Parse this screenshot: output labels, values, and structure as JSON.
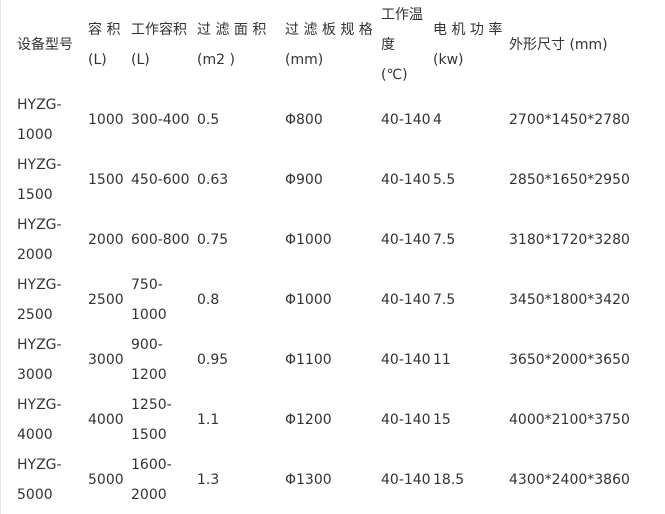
{
  "table": {
    "headers": [
      {
        "line1": "设备型号",
        "line2": ""
      },
      {
        "line1": "容  积",
        "line2": "(L)"
      },
      {
        "line1": "工作容积",
        "line2": "(L)"
      },
      {
        "line1": "过 滤 面 积",
        "line2": "(m2 )"
      },
      {
        "line1": "过 滤 板 规 格",
        "line2": "(mm)"
      },
      {
        "line1": "工作温度",
        "line2": "(℃)"
      },
      {
        "line1": "电 机 功 率",
        "line2": "(kw)"
      },
      {
        "line1": "外形尺寸 (mm)",
        "line2": ""
      }
    ],
    "rows": [
      [
        "HYZG-1000",
        "1000",
        "300-400",
        "0.5",
        "Φ800",
        "40-140",
        "4",
        "2700*1450*2780"
      ],
      [
        "HYZG-1500",
        "1500",
        "450-600",
        "0.63",
        "Φ900",
        "40-140",
        "5.5",
        "2850*1650*2950"
      ],
      [
        "HYZG-2000",
        "2000",
        "600-800",
        "0.75",
        "Φ1000",
        "40-140",
        "7.5",
        "3180*1720*3280"
      ],
      [
        "HYZG-2500",
        "2500",
        "750-1000",
        "0.8",
        "Φ1000",
        "40-140",
        "7.5",
        "3450*1800*3420"
      ],
      [
        "HYZG-3000",
        "3000",
        "900-1200",
        "0.95",
        "Φ1100",
        "40-140",
        "11",
        "3650*2000*3650"
      ],
      [
        "HYZG-4000",
        "4000",
        "1250-1500",
        "1.1",
        "Φ1200",
        "40-140",
        "15",
        "4000*2100*3750"
      ],
      [
        "HYZG-5000",
        "5000",
        "1600-2000",
        "1.3",
        "Φ1300",
        "40-140",
        "18.5",
        "4300*2400*3860"
      ]
    ]
  }
}
